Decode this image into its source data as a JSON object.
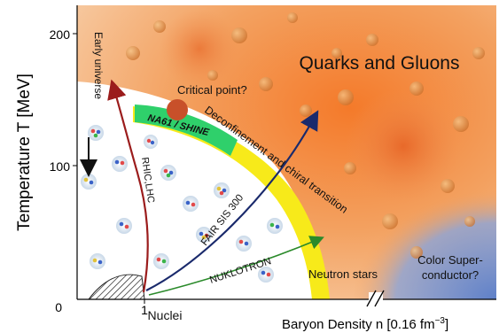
{
  "axes": {
    "y_label": "Temperature T [MeV]",
    "y_ticks": [
      "200",
      "100",
      "0"
    ],
    "x_tick_1": "1",
    "x_label_prefix": "Baryon Density  n [0.16 fm",
    "x_label_exp": "−3",
    "x_label_suffix": "]"
  },
  "regions": {
    "qgp": "Quarks and Gluons",
    "color_sc_line1": "Color Super-",
    "color_sc_line2": "conductor?",
    "nuclei": "Nuclei",
    "neutron_stars": "Neutron stars"
  },
  "labels": {
    "critical_point": "Critical point?",
    "transition": "Deconfinement and chiral transition",
    "early_universe": "Early universe",
    "rhic_lhc": "RHIC,LHC",
    "fair": "FAIR SIS 300",
    "nuklotron": "NUKLOTRON",
    "na61": "NA61 / SHINE"
  },
  "colors": {
    "qgp_orange": "#f08a3c",
    "transition_yellow": "#f7ea1a",
    "na61_green": "#2fd06b",
    "color_sc_blue": "#6f8fd0",
    "critical_point": "#c8502a",
    "rhic_arrow": "#9b1c1c",
    "fair_arrow": "#1a2a6c",
    "nuklotron_arrow": "#2a8a2a",
    "early_universe_arrow": "#111111"
  }
}
